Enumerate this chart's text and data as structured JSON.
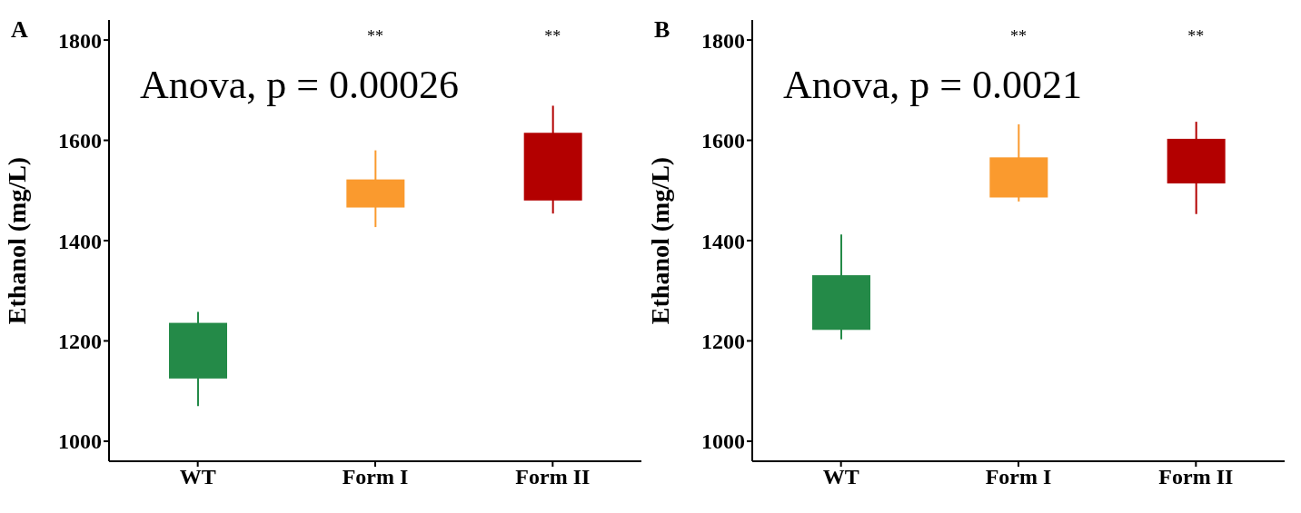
{
  "chart_data": [
    {
      "type": "candlestick",
      "title": "A",
      "ylabel": "Ethanol (mg/L)",
      "categories": [
        "WT",
        "Form I",
        "Form II"
      ],
      "ohlc": [
        [
          1125,
          1258,
          1070,
          1236
        ],
        [
          1466,
          1580,
          1427,
          1522
        ],
        [
          1480,
          1669,
          1454,
          1615
        ]
      ],
      "colors": [
        "#248a48",
        "#fa9a2e",
        "#b30000"
      ],
      "ylim": [
        960,
        1840
      ],
      "yticks": [
        1000,
        1200,
        1400,
        1600,
        1800
      ],
      "annotations": [
        "Anova, p = 0.00026",
        "**",
        "**"
      ]
    },
    {
      "type": "candlestick",
      "title": "B",
      "ylabel": "Ethanol (mg/L)",
      "categories": [
        "WT",
        "Form I",
        "Form II"
      ],
      "ohlc": [
        [
          1222,
          1412,
          1203,
          1331
        ],
        [
          1486,
          1632,
          1478,
          1566
        ],
        [
          1514,
          1637,
          1453,
          1603
        ]
      ],
      "colors": [
        "#248a48",
        "#fa9a2e",
        "#b30000"
      ],
      "ylim": [
        960,
        1840
      ],
      "yticks": [
        1000,
        1200,
        1400,
        1600,
        1800
      ],
      "annotations": [
        "Anova, p = 0.0021",
        "**",
        "**"
      ]
    }
  ]
}
